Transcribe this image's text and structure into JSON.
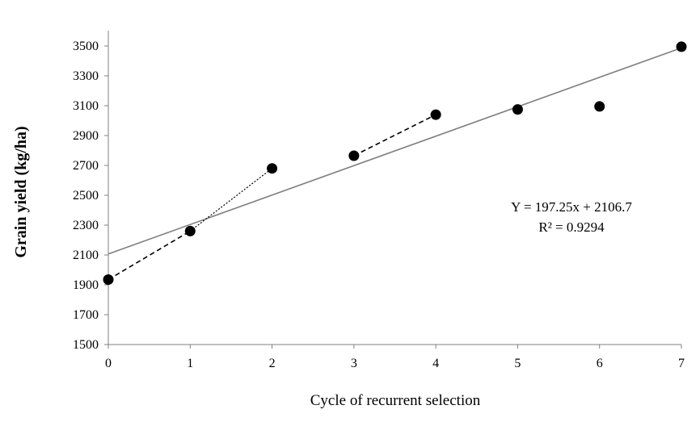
{
  "chart_data": {
    "type": "scatter",
    "title": "",
    "xlabel": "Cycle of recurrent selection",
    "ylabel": "Grain yield (kg/ha)",
    "xlim": [
      0,
      7
    ],
    "ylim": [
      1500,
      3500
    ],
    "x_ticks": [
      "0",
      "1",
      "2",
      "3",
      "4",
      "5",
      "6",
      "7"
    ],
    "y_ticks": [
      "1500",
      "1700",
      "1900",
      "2100",
      "2300",
      "2500",
      "2700",
      "2900",
      "3100",
      "3300",
      "3500"
    ],
    "grid": false,
    "legend": "none",
    "series": [
      {
        "x": [
          0,
          1,
          2,
          3,
          4,
          5,
          6,
          7
        ],
        "values": [
          1935,
          2260,
          2680,
          2765,
          3040,
          3075,
          3095,
          3495
        ],
        "marker": "filled-circle",
        "color": "#000000"
      }
    ],
    "connectors": [
      {
        "from_index": 0,
        "to_index": 1,
        "style": "dashed"
      },
      {
        "from_index": 1,
        "to_index": 2,
        "style": "dotted"
      },
      {
        "from_index": 3,
        "to_index": 4,
        "style": "dashed"
      }
    ],
    "trendline": {
      "type": "linear",
      "slope": 197.25,
      "intercept": 2106.7,
      "color": "#7f7f7f",
      "equation_text": "Y = 197.25x + 2106.7",
      "r2_text": "R² = 0.9294"
    }
  }
}
